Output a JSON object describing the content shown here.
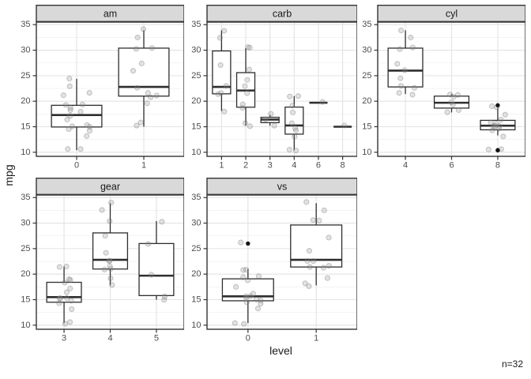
{
  "figure": {
    "y_axis_title": "mpg",
    "x_axis_title": "level",
    "caption": "n=32"
  },
  "colors": {
    "strip_fill": "#d9d9d9",
    "panel_border": "#343434",
    "box_stroke": "#2e2e2e",
    "grid_major": "#e3e3e3",
    "grid_minor": "#f1f1f1",
    "tick_text": "#4d4d4d",
    "title_text": "#1a1a1a",
    "point_fill": "#8c8c8c",
    "point_stroke": "#787878",
    "outlier_fill": "#141414"
  },
  "chart_data": {
    "type": "boxplot",
    "title": "",
    "xlabel": "level",
    "ylabel": "mpg",
    "caption": "n=32",
    "grid": true,
    "y_ticks": [
      10,
      15,
      20,
      25,
      30,
      35
    ],
    "y_minor_ticks": [
      12.5,
      17.5,
      22.5,
      27.5,
      32.5
    ],
    "ylim": [
      9.2,
      35.5
    ],
    "panels": [
      {
        "facet": "am",
        "categories": [
          "0",
          "1"
        ],
        "boxes": [
          {
            "category": "0",
            "whisker_low": 10.4,
            "q1": 14.95,
            "median": 17.3,
            "q3": 19.2,
            "whisker_high": 24.4,
            "outliers": []
          },
          {
            "category": "1",
            "whisker_low": 15.0,
            "q1": 21.0,
            "median": 22.8,
            "q3": 30.4,
            "whisker_high": 33.9,
            "outliers": []
          }
        ],
        "points": [
          [
            21.4,
            18.7,
            18.1,
            14.3,
            24.4,
            22.8,
            19.2,
            17.8,
            16.4,
            17.3,
            15.2,
            10.4,
            10.4,
            14.7,
            21.5,
            15.5,
            15.2,
            13.3,
            19.2
          ],
          [
            21.0,
            21.0,
            22.8,
            32.4,
            30.4,
            33.9,
            27.3,
            26.0,
            30.4,
            15.8,
            19.7,
            15.0,
            21.4
          ]
        ]
      },
      {
        "facet": "carb",
        "categories": [
          "1",
          "2",
          "3",
          "4",
          "6",
          "8"
        ],
        "boxes": [
          {
            "category": "1",
            "whisker_low": 18.1,
            "q1": 21.45,
            "median": 22.8,
            "q3": 29.85,
            "whisker_high": 33.9,
            "outliers": []
          },
          {
            "category": "2",
            "whisker_low": 15.2,
            "q1": 18.83,
            "median": 22.1,
            "q3": 25.6,
            "whisker_high": 30.4,
            "outliers": []
          },
          {
            "category": "3",
            "whisker_low": 15.2,
            "q1": 15.8,
            "median": 16.4,
            "q3": 16.85,
            "whisker_high": 17.3,
            "outliers": []
          },
          {
            "category": "4",
            "whisker_low": 10.4,
            "q1": 13.55,
            "median": 15.25,
            "q3": 18.85,
            "whisker_high": 21.0,
            "outliers": []
          },
          {
            "category": "6",
            "whisker_low": 19.7,
            "q1": 19.7,
            "median": 19.7,
            "q3": 19.7,
            "whisker_high": 19.7,
            "outliers": []
          },
          {
            "category": "8",
            "whisker_low": 15.0,
            "q1": 15.0,
            "median": 15.0,
            "q3": 15.0,
            "whisker_high": 15.0,
            "outliers": []
          }
        ],
        "points": [
          [
            22.8,
            21.4,
            18.1,
            32.4,
            33.9,
            21.5,
            27.3
          ],
          [
            18.7,
            24.4,
            22.8,
            30.4,
            15.5,
            15.2,
            19.2,
            26.0,
            30.4,
            21.4
          ],
          [
            16.4,
            17.3,
            15.2
          ],
          [
            21.0,
            21.0,
            14.3,
            19.2,
            17.8,
            10.4,
            10.4,
            14.7,
            13.3,
            15.8
          ],
          [
            19.7
          ],
          [
            15.0
          ]
        ]
      },
      {
        "facet": "cyl",
        "categories": [
          "4",
          "6",
          "8"
        ],
        "boxes": [
          {
            "category": "4",
            "whisker_low": 21.4,
            "q1": 22.8,
            "median": 26.0,
            "q3": 30.4,
            "whisker_high": 33.9,
            "outliers": []
          },
          {
            "category": "6",
            "whisker_low": 17.8,
            "q1": 18.65,
            "median": 19.7,
            "q3": 21.0,
            "whisker_high": 21.4,
            "outliers": []
          },
          {
            "category": "8",
            "whisker_low": 13.3,
            "q1": 14.4,
            "median": 15.2,
            "q3": 16.25,
            "whisker_high": 18.7,
            "outliers": [
              10.4,
              10.4,
              19.2
            ]
          }
        ],
        "points": [
          [
            22.8,
            24.4,
            22.8,
            32.4,
            30.4,
            33.9,
            21.5,
            27.3,
            26.0,
            30.4,
            21.4
          ],
          [
            21.0,
            21.0,
            21.4,
            18.1,
            19.2,
            17.8,
            19.7
          ],
          [
            18.7,
            14.3,
            16.4,
            17.3,
            15.2,
            10.4,
            10.4,
            14.7,
            15.5,
            15.2,
            13.3,
            19.2,
            15.8,
            15.0
          ]
        ]
      },
      {
        "facet": "gear",
        "categories": [
          "3",
          "4",
          "5"
        ],
        "boxes": [
          {
            "category": "3",
            "whisker_low": 10.4,
            "q1": 14.5,
            "median": 15.5,
            "q3": 18.4,
            "whisker_high": 21.5,
            "outliers": []
          },
          {
            "category": "4",
            "whisker_low": 17.8,
            "q1": 21.0,
            "median": 22.8,
            "q3": 28.08,
            "whisker_high": 33.9,
            "outliers": []
          },
          {
            "category": "5",
            "whisker_low": 15.0,
            "q1": 15.8,
            "median": 19.7,
            "q3": 26.0,
            "whisker_high": 30.4,
            "outliers": []
          }
        ],
        "points": [
          [
            21.4,
            18.7,
            18.1,
            14.3,
            16.4,
            17.3,
            15.2,
            10.4,
            10.4,
            14.7,
            21.5,
            15.5,
            15.2,
            13.3,
            19.2
          ],
          [
            21.0,
            21.0,
            22.8,
            24.4,
            22.8,
            19.2,
            17.8,
            32.4,
            30.4,
            33.9,
            27.3,
            21.4
          ],
          [
            26.0,
            30.4,
            15.8,
            19.7,
            15.0
          ]
        ]
      },
      {
        "facet": "vs",
        "categories": [
          "0",
          "1"
        ],
        "boxes": [
          {
            "category": "0",
            "whisker_low": 10.4,
            "q1": 14.78,
            "median": 15.65,
            "q3": 19.08,
            "whisker_high": 21.0,
            "outliers": [
              26.0
            ]
          },
          {
            "category": "1",
            "whisker_low": 17.8,
            "q1": 21.4,
            "median": 22.8,
            "q3": 29.63,
            "whisker_high": 33.9,
            "outliers": []
          }
        ],
        "points": [
          [
            21.0,
            21.0,
            18.7,
            14.3,
            16.4,
            17.3,
            15.2,
            10.4,
            10.4,
            14.7,
            15.5,
            15.2,
            13.3,
            19.2,
            26.0,
            15.8,
            19.7,
            15.0
          ],
          [
            22.8,
            21.4,
            18.1,
            24.4,
            22.8,
            19.2,
            17.8,
            32.4,
            30.4,
            33.9,
            21.5,
            27.3,
            30.4,
            21.4
          ]
        ]
      }
    ]
  }
}
